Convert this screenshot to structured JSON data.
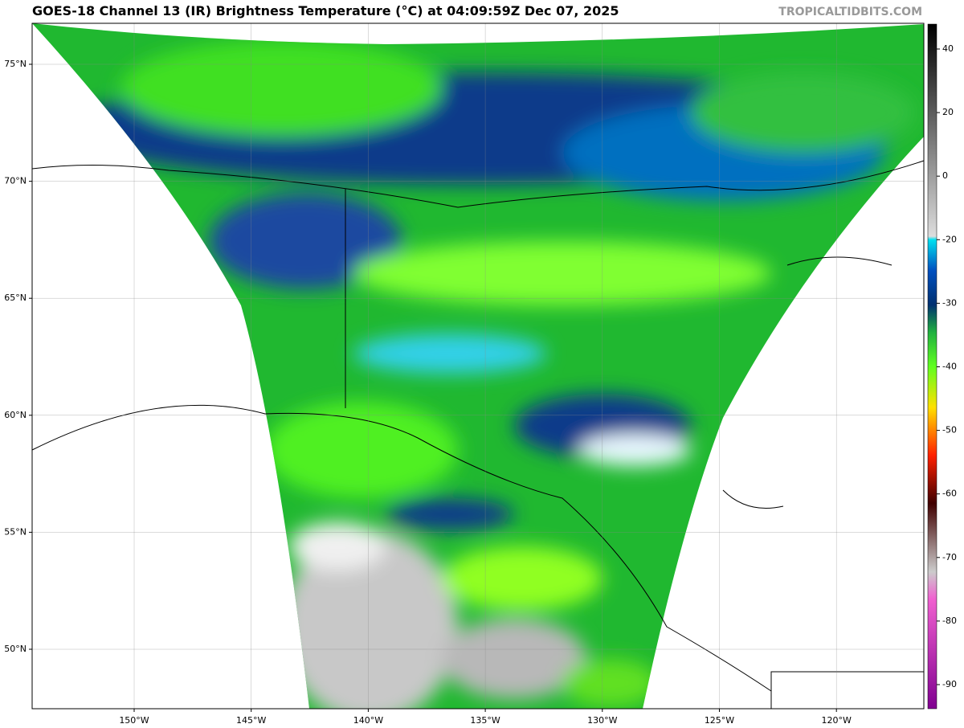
{
  "header": {
    "title": "GOES-18 Channel 13 (IR) Brightness Temperature (°C) at 04:09:59Z Dec 07, 2025",
    "watermark": "TROPICALTIDBITS.COM"
  },
  "map": {
    "lat_ticks": [
      {
        "value": 75,
        "label": "75°N"
      },
      {
        "value": 70,
        "label": "70°N"
      },
      {
        "value": 65,
        "label": "65°N"
      },
      {
        "value": 60,
        "label": "60°N"
      },
      {
        "value": 55,
        "label": "55°N"
      },
      {
        "value": 50,
        "label": "50°N"
      }
    ],
    "lon_ticks": [
      {
        "value": -150,
        "label": "150°W"
      },
      {
        "value": -145,
        "label": "145°W"
      },
      {
        "value": -140,
        "label": "140°W"
      },
      {
        "value": -135,
        "label": "135°W"
      },
      {
        "value": -130,
        "label": "130°W"
      },
      {
        "value": -125,
        "label": "125°W"
      },
      {
        "value": -120,
        "label": "120°W"
      }
    ]
  },
  "colorbar": {
    "ticks": [
      40,
      20,
      0,
      -20,
      -30,
      -40,
      -50,
      -60,
      -70,
      -80,
      -90
    ]
  }
}
